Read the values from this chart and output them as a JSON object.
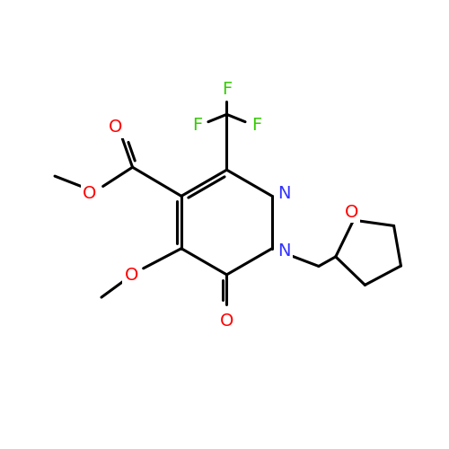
{
  "bg_color": "#ffffff",
  "atom_colors": {
    "C": "#000000",
    "N": "#3333ff",
    "O": "#ff0000",
    "F": "#33cc00"
  },
  "bond_color": "#000000",
  "bond_width": 2.2,
  "font_size": 14
}
